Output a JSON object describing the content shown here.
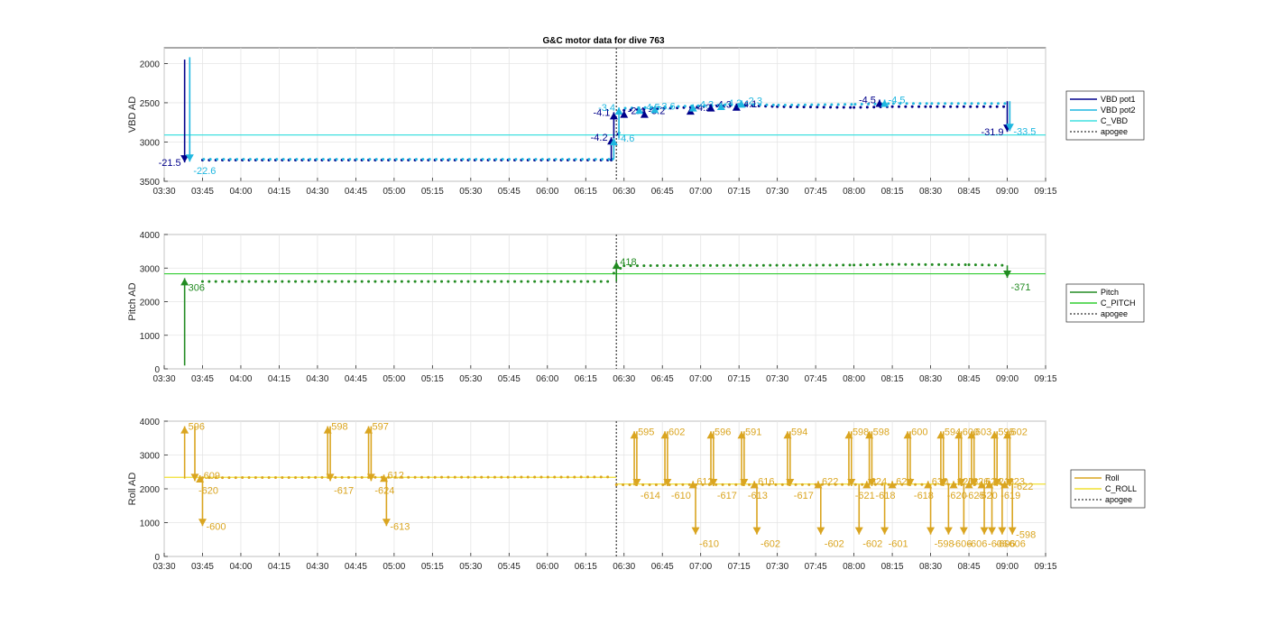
{
  "figure": {
    "title": "G&C motor data for dive 763"
  },
  "chart_data": [
    {
      "type": "line",
      "ylabel": "VBD AD",
      "yreverse": true,
      "ylim": [
        1800,
        3500
      ],
      "xlim": [
        "03:30",
        "09:15"
      ],
      "yticks": [
        2000,
        2500,
        3000,
        3500
      ],
      "xticks": [
        "03:30",
        "03:45",
        "04:00",
        "04:15",
        "04:30",
        "04:45",
        "05:00",
        "05:15",
        "05:30",
        "05:45",
        "06:00",
        "06:15",
        "06:30",
        "06:45",
        "07:00",
        "07:15",
        "07:30",
        "07:45",
        "08:00",
        "08:15",
        "08:30",
        "08:45",
        "09:00",
        "09:15"
      ],
      "grid": true,
      "legend_placement": "right",
      "legend": [
        "VBD pot1",
        "VBD pot2",
        "C_VBD",
        "apogee"
      ],
      "colors": {
        "pot1": "#00008b",
        "pot2": "#1fb7e0",
        "c_line": "#40e0e0",
        "apogee": "#555555"
      },
      "apogee": "06:27",
      "c_value": 2910,
      "series": [
        {
          "name": "VBD pot1",
          "dots": [
            [
              "03:45",
              3230
            ],
            [
              "06:25",
              3230
            ],
            [
              "06:30",
              2595
            ],
            [
              "07:15",
              2530
            ],
            [
              "07:30",
              2550
            ],
            [
              "08:00",
              2560
            ],
            [
              "08:15",
              2550
            ],
            [
              "08:30",
              2550
            ],
            [
              "09:00",
              2550
            ]
          ]
        },
        {
          "name": "VBD pot2",
          "dots": [
            [
              "03:45",
              3220
            ],
            [
              "06:25",
              3220
            ],
            [
              "06:30",
              2570
            ],
            [
              "07:15",
              2520
            ],
            [
              "07:30",
              2530
            ],
            [
              "08:00",
              2520
            ],
            [
              "08:15",
              2510
            ],
            [
              "08:30",
              2510
            ],
            [
              "09:00",
              2510
            ]
          ]
        }
      ],
      "arrows": [
        {
          "s": "pot1",
          "t": "03:38",
          "from": 1950,
          "to": 3260,
          "label": "-21.5",
          "ld": "left"
        },
        {
          "s": "pot2",
          "t": "03:40",
          "from": 1920,
          "to": 3250,
          "label": "-22.6",
          "ld": "below"
        },
        {
          "s": "pot1",
          "t": "06:25",
          "from": 3230,
          "to": 2940,
          "label": "-4.2",
          "ld": "left"
        },
        {
          "s": "pot2",
          "t": "06:26",
          "from": 3220,
          "to": 2950,
          "label": "-4.6",
          "ld": "right"
        },
        {
          "s": "pot1",
          "t": "06:26",
          "from": 2950,
          "to": 2620,
          "label": "-4.1",
          "ld": "left"
        },
        {
          "s": "pot2",
          "t": "06:28",
          "from": 2950,
          "to": 2560,
          "label": "-3.4",
          "ld": "left"
        },
        {
          "s": "pot1",
          "t": "06:30",
          "from": 2640,
          "to": 2600,
          "label": "-2.4",
          "ld": "right"
        },
        {
          "s": "pot2",
          "t": "06:36",
          "from": 2600,
          "to": 2550,
          "label": "-4.5",
          "ld": "right"
        },
        {
          "s": "pot1",
          "t": "06:38",
          "from": 2640,
          "to": 2600,
          "label": "-3.2",
          "ld": "right"
        },
        {
          "s": "pot2",
          "t": "06:42",
          "from": 2580,
          "to": 2540,
          "label": "-3.6",
          "ld": "right"
        },
        {
          "s": "pot1",
          "t": "06:56",
          "from": 2600,
          "to": 2560,
          "label": "-4.2",
          "ld": "right"
        },
        {
          "s": "pot2",
          "t": "06:57",
          "from": 2560,
          "to": 2520,
          "label": "-4.3",
          "ld": "right"
        },
        {
          "s": "pot1",
          "t": "07:04",
          "from": 2580,
          "to": 2520,
          "label": "-4.3",
          "ld": "right"
        },
        {
          "s": "pot2",
          "t": "07:08",
          "from": 2540,
          "to": 2500,
          "label": "-4.2",
          "ld": "right"
        },
        {
          "s": "pot1",
          "t": "07:14",
          "from": 2560,
          "to": 2510,
          "label": "-4.1",
          "ld": "right"
        },
        {
          "s": "pot2",
          "t": "07:16",
          "from": 2500,
          "to": 2470,
          "label": "-2.3",
          "ld": "right"
        },
        {
          "s": "pot1",
          "t": "08:10",
          "from": 2500,
          "to": 2460,
          "label": "-4.5",
          "ld": "left"
        },
        {
          "s": "pot2",
          "t": "08:12",
          "from": 2500,
          "to": 2460,
          "label": "-4.5",
          "ld": "right"
        },
        {
          "s": "pot1",
          "t": "09:00",
          "from": 2480,
          "to": 2870,
          "label": "-31.9",
          "ld": "left"
        },
        {
          "s": "pot2",
          "t": "09:01",
          "from": 2480,
          "to": 2860,
          "label": "-33.5",
          "ld": "right"
        }
      ]
    },
    {
      "type": "line",
      "ylabel": "Pitch AD",
      "yreverse": false,
      "ylim": [
        0,
        4000
      ],
      "xlim": [
        "03:30",
        "09:15"
      ],
      "yticks": [
        0,
        1000,
        2000,
        3000,
        4000
      ],
      "xticks": [
        "03:30",
        "03:45",
        "04:00",
        "04:15",
        "04:30",
        "04:45",
        "05:00",
        "05:15",
        "05:30",
        "05:45",
        "06:00",
        "06:15",
        "06:30",
        "06:45",
        "07:00",
        "07:15",
        "07:30",
        "07:45",
        "08:00",
        "08:15",
        "08:30",
        "08:45",
        "09:00",
        "09:15"
      ],
      "grid": true,
      "legend_placement": "right",
      "legend": [
        "Pitch",
        "C_PITCH",
        "apogee"
      ],
      "colors": {
        "s": "#228b22",
        "c_line": "#32cd32",
        "apogee": "#555555"
      },
      "apogee": "06:27",
      "c_value": 2830,
      "series": [
        {
          "name": "Pitch",
          "dots": [
            [
              "03:45",
              2600
            ],
            [
              "06:24",
              2600
            ],
            [
              "06:26",
              2850
            ],
            [
              "06:30",
              3070
            ],
            [
              "08:00",
              3090
            ],
            [
              "08:15",
              3110
            ],
            [
              "08:45",
              3100
            ],
            [
              "09:00",
              3080
            ]
          ]
        }
      ],
      "arrows": [
        {
          "s": "s",
          "t": "03:38",
          "from": 100,
          "to": 2700,
          "label": "306",
          "ld": "below"
        },
        {
          "s": "s",
          "t": "06:27",
          "from": 2600,
          "to": 3190,
          "label": "418",
          "ld": "right"
        },
        {
          "s": "s",
          "t": "09:00",
          "from": 3080,
          "to": 2710,
          "label": "-371",
          "ld": "below"
        }
      ]
    },
    {
      "type": "line",
      "ylabel": "Roll AD",
      "yreverse": false,
      "ylim": [
        0,
        4000
      ],
      "xlim": [
        "03:30",
        "09:15"
      ],
      "yticks": [
        0,
        1000,
        2000,
        3000,
        4000
      ],
      "xticks": [
        "03:30",
        "03:45",
        "04:00",
        "04:15",
        "04:30",
        "04:45",
        "05:00",
        "05:15",
        "05:30",
        "05:45",
        "06:00",
        "06:15",
        "06:30",
        "06:45",
        "07:00",
        "07:15",
        "07:30",
        "07:45",
        "08:00",
        "08:15",
        "08:30",
        "08:45",
        "09:00",
        "09:15"
      ],
      "grid": true,
      "legend_placement": "right",
      "legend": [
        "Roll",
        "C_ROLL",
        "apogee"
      ],
      "colors": {
        "s": "#daa520",
        "c_line": "#f0e030",
        "apogee": "#555555"
      },
      "apogee": "06:27",
      "c_value": 2340,
      "c_value2": 2140,
      "series": [
        {
          "name": "Roll",
          "dots": [
            [
              "03:45",
              2330
            ],
            [
              "06:25",
              2350
            ],
            [
              "06:27",
              2120
            ],
            [
              "09:00",
              2130
            ]
          ]
        }
      ],
      "arrows": [
        {
          "s": "s",
          "t": "03:38",
          "from": 2300,
          "to": 3850,
          "label": "596",
          "ld": "right"
        },
        {
          "s": "s",
          "t": "03:42",
          "from": 3850,
          "to": 2230,
          "label": "-620",
          "ld": "below"
        },
        {
          "s": "s",
          "t": "03:44",
          "from": 2230,
          "to": 2400,
          "label": "609",
          "ld": "right"
        },
        {
          "s": "s",
          "t": "03:45",
          "from": 2330,
          "to": 900,
          "label": "-600",
          "ld": "right"
        },
        {
          "s": "s",
          "t": "04:34",
          "from": 2300,
          "to": 3850,
          "label": "598",
          "ld": "right"
        },
        {
          "s": "s",
          "t": "04:35",
          "from": 3850,
          "to": 2230,
          "label": "-617",
          "ld": "below"
        },
        {
          "s": "s",
          "t": "04:50",
          "from": 2300,
          "to": 3850,
          "label": "597",
          "ld": "right"
        },
        {
          "s": "s",
          "t": "04:51",
          "from": 3850,
          "to": 2230,
          "label": "-624",
          "ld": "below"
        },
        {
          "s": "s",
          "t": "04:56",
          "from": 2330,
          "to": 2420,
          "label": "612",
          "ld": "right"
        },
        {
          "s": "s",
          "t": "04:57",
          "from": 2330,
          "to": 900,
          "label": "-613",
          "ld": "right"
        },
        {
          "s": "s",
          "t": "06:34",
          "from": 2100,
          "to": 3700,
          "label": "595",
          "ld": "right"
        },
        {
          "s": "s",
          "t": "06:35",
          "from": 3700,
          "to": 2080,
          "label": "-614",
          "ld": "below"
        },
        {
          "s": "s",
          "t": "06:46",
          "from": 2100,
          "to": 3700,
          "label": "602",
          "ld": "right"
        },
        {
          "s": "s",
          "t": "06:47",
          "from": 3700,
          "to": 2080,
          "label": "-610",
          "ld": "below"
        },
        {
          "s": "s",
          "t": "06:57",
          "from": 2100,
          "to": 2230,
          "label": "612",
          "ld": "right"
        },
        {
          "s": "s",
          "t": "06:58",
          "from": 2130,
          "to": 650,
          "label": "-610",
          "ld": "below"
        },
        {
          "s": "s",
          "t": "07:04",
          "from": 2100,
          "to": 3700,
          "label": "596",
          "ld": "right"
        },
        {
          "s": "s",
          "t": "07:05",
          "from": 3700,
          "to": 2080,
          "label": "-617",
          "ld": "below"
        },
        {
          "s": "s",
          "t": "07:16",
          "from": 2100,
          "to": 3700,
          "label": "591",
          "ld": "right"
        },
        {
          "s": "s",
          "t": "07:17",
          "from": 3700,
          "to": 2080,
          "label": "-613",
          "ld": "below"
        },
        {
          "s": "s",
          "t": "07:21",
          "from": 2100,
          "to": 2230,
          "label": "616",
          "ld": "right"
        },
        {
          "s": "s",
          "t": "07:22",
          "from": 2130,
          "to": 650,
          "label": "-602",
          "ld": "below"
        },
        {
          "s": "s",
          "t": "07:34",
          "from": 2100,
          "to": 3700,
          "label": "594",
          "ld": "right"
        },
        {
          "s": "s",
          "t": "07:35",
          "from": 3700,
          "to": 2080,
          "label": "-617",
          "ld": "below"
        },
        {
          "s": "s",
          "t": "07:46",
          "from": 2100,
          "to": 2230,
          "label": "622",
          "ld": "right"
        },
        {
          "s": "s",
          "t": "07:47",
          "from": 2130,
          "to": 650,
          "label": "-602",
          "ld": "below"
        },
        {
          "s": "s",
          "t": "07:58",
          "from": 2100,
          "to": 3700,
          "label": "598",
          "ld": "right"
        },
        {
          "s": "s",
          "t": "07:59",
          "from": 3700,
          "to": 2080,
          "label": "-621",
          "ld": "below"
        },
        {
          "s": "s",
          "t": "08:02",
          "from": 2130,
          "to": 650,
          "label": "-602",
          "ld": "below"
        },
        {
          "s": "s",
          "t": "08:05",
          "from": 2100,
          "to": 2230,
          "label": "624",
          "ld": "right"
        },
        {
          "s": "s",
          "t": "08:06",
          "from": 2100,
          "to": 3700,
          "label": "598",
          "ld": "right"
        },
        {
          "s": "s",
          "t": "08:07",
          "from": 3700,
          "to": 2080,
          "label": "-618",
          "ld": "below"
        },
        {
          "s": "s",
          "t": "08:12",
          "from": 2130,
          "to": 650,
          "label": "-601",
          "ld": "below"
        },
        {
          "s": "s",
          "t": "08:15",
          "from": 2100,
          "to": 2230,
          "label": "624",
          "ld": "right"
        },
        {
          "s": "s",
          "t": "08:21",
          "from": 2100,
          "to": 3700,
          "label": "600",
          "ld": "right"
        },
        {
          "s": "s",
          "t": "08:22",
          "from": 3700,
          "to": 2080,
          "label": "-618",
          "ld": "below"
        },
        {
          "s": "s",
          "t": "08:29",
          "from": 2100,
          "to": 2230,
          "label": "630",
          "ld": "right"
        },
        {
          "s": "s",
          "t": "08:30",
          "from": 2130,
          "to": 650,
          "label": "-598",
          "ld": "below"
        },
        {
          "s": "s",
          "t": "08:34",
          "from": 2100,
          "to": 3700,
          "label": "594",
          "ld": "right"
        },
        {
          "s": "s",
          "t": "08:35",
          "from": 3700,
          "to": 2080,
          "label": "-620",
          "ld": "below"
        },
        {
          "s": "s",
          "t": "08:37",
          "from": 2130,
          "to": 650,
          "label": "-606",
          "ld": "below"
        },
        {
          "s": "s",
          "t": "08:39",
          "from": 2100,
          "to": 2230,
          "label": "625",
          "ld": "right"
        },
        {
          "s": "s",
          "t": "08:41",
          "from": 2100,
          "to": 3700,
          "label": "600",
          "ld": "right"
        },
        {
          "s": "s",
          "t": "08:42",
          "from": 3700,
          "to": 2080,
          "label": "-625",
          "ld": "below"
        },
        {
          "s": "s",
          "t": "08:43",
          "from": 2130,
          "to": 650,
          "label": "-606",
          "ld": "below"
        },
        {
          "s": "s",
          "t": "08:45",
          "from": 2100,
          "to": 2230,
          "label": "626",
          "ld": "right"
        },
        {
          "s": "s",
          "t": "08:46",
          "from": 2100,
          "to": 3700,
          "label": "603",
          "ld": "right"
        },
        {
          "s": "s",
          "t": "08:47",
          "from": 3700,
          "to": 2080,
          "label": "-620",
          "ld": "below"
        },
        {
          "s": "s",
          "t": "08:50",
          "from": 2100,
          "to": 2230,
          "label": "624",
          "ld": "right"
        },
        {
          "s": "s",
          "t": "08:51",
          "from": 2130,
          "to": 650,
          "label": "-606",
          "ld": "below"
        },
        {
          "s": "s",
          "t": "08:53",
          "from": 2100,
          "to": 2230,
          "label": "621",
          "ld": "right"
        },
        {
          "s": "s",
          "t": "08:54",
          "from": 2130,
          "to": 650,
          "label": "-606",
          "ld": "below"
        },
        {
          "s": "s",
          "t": "08:55",
          "from": 2100,
          "to": 3700,
          "label": "595",
          "ld": "right"
        },
        {
          "s": "s",
          "t": "08:56",
          "from": 3700,
          "to": 2080,
          "label": "-619",
          "ld": "below"
        },
        {
          "s": "s",
          "t": "08:58",
          "from": 2130,
          "to": 650,
          "label": "-606",
          "ld": "below"
        },
        {
          "s": "s",
          "t": "08:59",
          "from": 2100,
          "to": 2230,
          "label": "623",
          "ld": "right"
        },
        {
          "s": "s",
          "t": "09:00",
          "from": 2100,
          "to": 3700,
          "label": "602",
          "ld": "right"
        },
        {
          "s": "s",
          "t": "09:01",
          "from": 3700,
          "to": 2080,
          "label": "-622",
          "ld": "right"
        },
        {
          "s": "s",
          "t": "09:02",
          "from": 2130,
          "to": 650,
          "label": "-598",
          "ld": "right"
        }
      ]
    }
  ]
}
